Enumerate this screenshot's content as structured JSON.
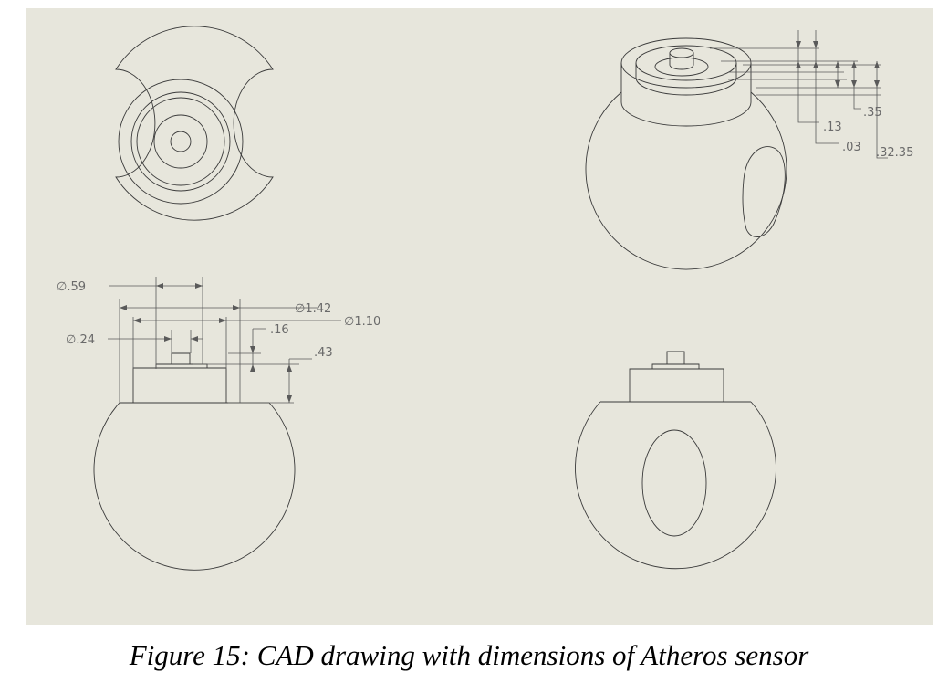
{
  "caption": "Figure 15: CAD drawing with dimensions of Atheros sensor",
  "dimensions": {
    "dia_059": "∅.59",
    "dia_142": "∅1.42",
    "dia_110": "∅1.10",
    "dia_024": "∅.24",
    "d_016": ".16",
    "d_043": ".43",
    "d_013": ".13",
    "d_003": ".03",
    "d_035": ".35",
    "d_032_035": ".32.35"
  }
}
